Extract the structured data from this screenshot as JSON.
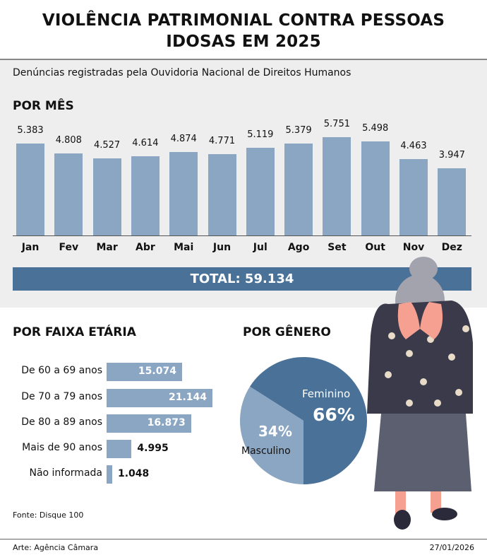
{
  "title_line1": "VIOLÊNCIA PATRIMONIAL CONTRA PESSOAS",
  "title_line2": "IDOSAS EM 2025",
  "subtitle": "Denúncias registradas pela Ouvidoria Nacional de Direitos Humanos",
  "colors": {
    "bar": "#8ba6c3",
    "dark": "#4a7298",
    "background": "#eeeeee"
  },
  "chart_data": [
    {
      "type": "bar",
      "title": "POR MÊS",
      "categories": [
        "Jan",
        "Fev",
        "Mar",
        "Abr",
        "Mai",
        "Jun",
        "Jul",
        "Ago",
        "Set",
        "Out",
        "Nov",
        "Dez"
      ],
      "values": [
        5383,
        4808,
        4527,
        4614,
        4874,
        4771,
        5119,
        5379,
        5751,
        5498,
        4463,
        3947
      ],
      "labels": [
        "5.383",
        "4.808",
        "4.527",
        "4.614",
        "4.874",
        "4.771",
        "5.119",
        "5.379",
        "5.751",
        "5.498",
        "4.463",
        "3.947"
      ],
      "total_label": "TOTAL: 59.134"
    },
    {
      "type": "bar",
      "orientation": "horizontal",
      "title": "POR FAIXA ETÁRIA",
      "categories": [
        "De 60 a 69 anos",
        "De 70 a 79 anos",
        "De 80 a 89 anos",
        "Mais de 90 anos",
        "Não informada"
      ],
      "values": [
        15074,
        21144,
        16873,
        4995,
        1048
      ],
      "labels": [
        "15.074",
        "21.144",
        "16.873",
        "4.995",
        "1.048"
      ]
    },
    {
      "type": "pie",
      "title": "POR GÊNERO",
      "slices": [
        {
          "name": "Feminino",
          "value": 66,
          "label": "66%",
          "color": "#4a7298"
        },
        {
          "name": "Masculino",
          "value": 34,
          "label": "34%",
          "color": "#8ba6c3"
        }
      ]
    }
  ],
  "source": "Fonte: Disque 100",
  "credit": "Arte: Agência Câmara",
  "date": "27/01/2026"
}
